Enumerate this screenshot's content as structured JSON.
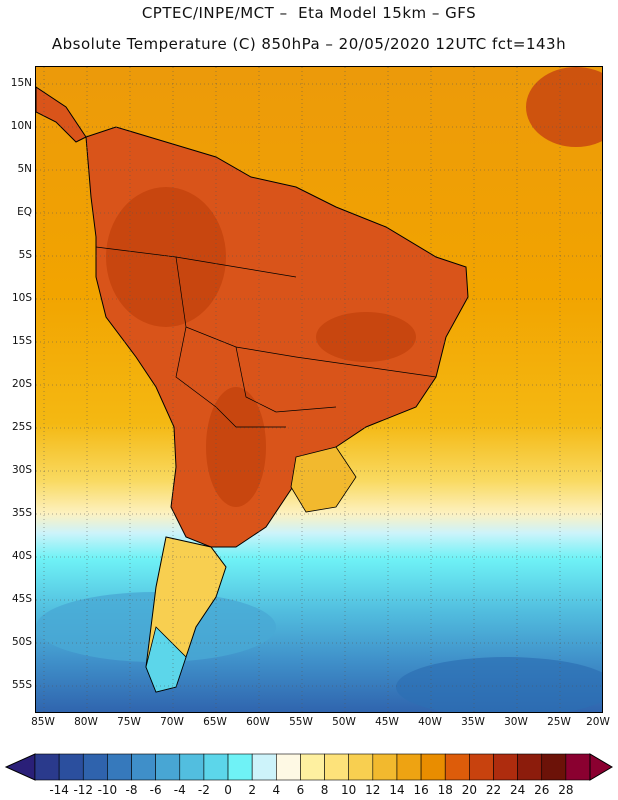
{
  "header": {
    "title_line1": "CPTEC/INPE/MCT –  Eta Model 15km – GFS",
    "title_line2": "Absolute Temperature (C) 850hPa – 20/05/2020 12UTC fct=143h"
  },
  "map": {
    "lat_labels": [
      "15N",
      "10N",
      "5N",
      "EQ",
      "5S",
      "10S",
      "15S",
      "20S",
      "25S",
      "30S",
      "35S",
      "40S",
      "45S",
      "50S",
      "55S"
    ],
    "lon_labels": [
      "85W",
      "80W",
      "75W",
      "70W",
      "65W",
      "60W",
      "55W",
      "50W",
      "45W",
      "40W",
      "35W",
      "30W",
      "25W",
      "20W"
    ],
    "grid": "dotted",
    "colors": {
      "ocean_warm": "#f2a400",
      "land_hot": "#d9541a",
      "land_very_hot": "#c8460f",
      "ocean_mild": "#f6c22a",
      "cool_band": "#fdf1c0",
      "cold_ocean": "#56dbf0",
      "colder_ocean": "#48a9d5",
      "deep_cold": "#2c6fb3",
      "coastline": "#000000"
    }
  },
  "colorbar": {
    "labels": [
      "-14",
      "-12",
      "-10",
      "-8",
      "-6",
      "-4",
      "-2",
      "0",
      "2",
      "4",
      "6",
      "8",
      "10",
      "12",
      "14",
      "16",
      "18",
      "20",
      "22",
      "24",
      "26",
      "28"
    ],
    "colors": [
      "#2a3a8c",
      "#2b4f9e",
      "#2f63ad",
      "#3679bc",
      "#3f8fc9",
      "#48a6d4",
      "#52bedf",
      "#5cd6ea",
      "#6ff2f6",
      "#cdf3fa",
      "#fef9e4",
      "#fef0a0",
      "#fde27a",
      "#f8cf50",
      "#f2b92e",
      "#eea312",
      "#e98d00",
      "#dd5c0a",
      "#c8420e",
      "#ae2c0e",
      "#8c1c0c",
      "#6c1208",
      "#8a0030"
    ],
    "low_arrow_color": "#2a1f78",
    "high_arrow_color": "#8a0030"
  }
}
